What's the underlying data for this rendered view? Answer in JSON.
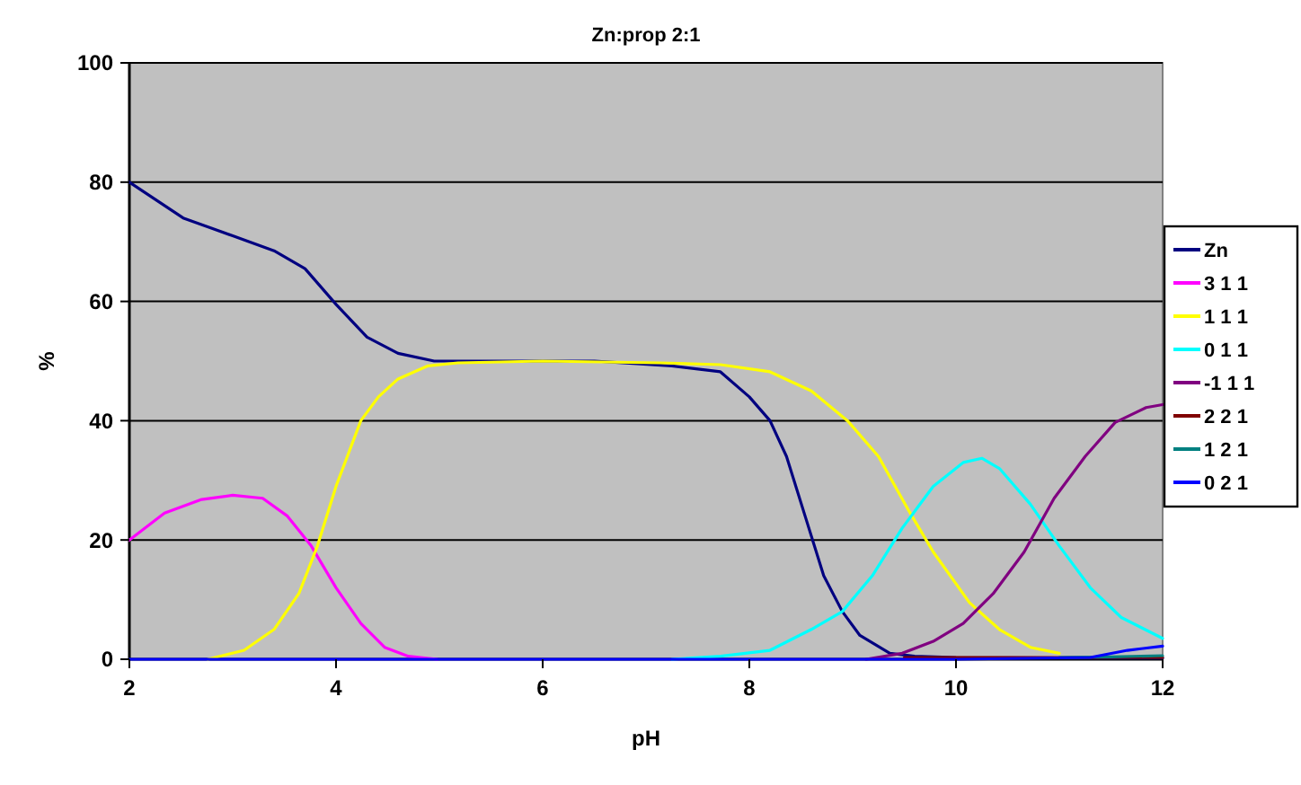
{
  "chart_data": {
    "type": "line",
    "title": "Zn:prop 2:1",
    "xlabel": "pH",
    "ylabel": "%",
    "xlim": [
      2,
      12
    ],
    "xticks": [
      2,
      4,
      6,
      8,
      10,
      12
    ],
    "ylim": [
      0,
      100
    ],
    "yticks": [
      0,
      20,
      40,
      60,
      80,
      100
    ],
    "grid": "y",
    "legend": "right",
    "marker": "none",
    "line_style": "solid",
    "series": [
      {
        "name": "Zn",
        "color": "#000080",
        "x": [
          2,
          2.52,
          3,
          3.4,
          3.7,
          4,
          4.3,
          4.6,
          4.95,
          5.5,
          6.5,
          7.25,
          7.72,
          8,
          8.2,
          8.36,
          8.54,
          8.72,
          8.9,
          9.07,
          9.36,
          9.6,
          10,
          11,
          12
        ],
        "values": [
          80,
          74,
          71,
          68.5,
          65.5,
          59.5,
          54,
          51.3,
          50,
          50,
          50,
          49.2,
          48.2,
          44,
          40,
          34,
          24,
          14,
          8,
          4,
          1,
          0.5,
          0.3,
          0.2,
          0.2
        ]
      },
      {
        "name": "3 1 1",
        "color": "#ff00ff",
        "x": [
          2,
          2.34,
          2.7,
          3,
          3.29,
          3.53,
          3.76,
          4,
          4.24,
          4.47,
          4.7,
          4.98
        ],
        "values": [
          20,
          24.5,
          26.8,
          27.5,
          27,
          24,
          19,
          12,
          6,
          2,
          0.5,
          0
        ]
      },
      {
        "name": "1 1 1",
        "color": "#ffff00",
        "x": [
          2.76,
          3.11,
          3.4,
          3.64,
          3.82,
          4,
          4.24,
          4.41,
          4.6,
          4.89,
          5.18,
          6,
          7.13,
          7.72,
          8.2,
          8.6,
          8.95,
          9.25,
          9.54,
          9.78,
          10.13,
          10.42,
          10.72,
          11
        ],
        "values": [
          0,
          1.5,
          5,
          11,
          19,
          29,
          40,
          44,
          47,
          49.2,
          49.7,
          50,
          49.7,
          49.4,
          48.2,
          45,
          40,
          34,
          25,
          18,
          9.5,
          5,
          2,
          1
        ]
      },
      {
        "name": "0 1 1",
        "color": "#00ffff",
        "x": [
          7.25,
          7.72,
          8.2,
          8.6,
          8.9,
          9.19,
          9.48,
          9.78,
          10.07,
          10.25,
          10.42,
          10.72,
          11,
          11.3,
          11.6,
          12
        ],
        "values": [
          0,
          0.5,
          1.5,
          5,
          8,
          14,
          22,
          29,
          33,
          33.7,
          32,
          26,
          19,
          12,
          7,
          3.5
        ]
      },
      {
        "name": "-1 1 1",
        "color": "#800080",
        "x": [
          9.13,
          9.48,
          9.78,
          10.07,
          10.36,
          10.66,
          10.95,
          11.25,
          11.54,
          11.84,
          12
        ],
        "values": [
          0,
          1,
          3,
          6,
          11,
          18,
          27,
          34,
          39.7,
          42.2,
          42.7
        ]
      },
      {
        "name": "2 2 1",
        "color": "#800000",
        "x": [
          9.5,
          10.5,
          11.5,
          12
        ],
        "values": [
          0.3,
          0.3,
          0.3,
          0.3
        ]
      },
      {
        "name": "1 2 1",
        "color": "#008080",
        "x": [
          11,
          11.5,
          12
        ],
        "values": [
          0.3,
          0.4,
          0.6
        ]
      },
      {
        "name": "0 2 1",
        "color": "#0000ff",
        "x": [
          2,
          4,
          6,
          8,
          10,
          11.3,
          11.66,
          12
        ],
        "values": [
          0,
          0,
          0,
          0,
          0,
          0.3,
          1.5,
          2.2
        ]
      }
    ]
  }
}
